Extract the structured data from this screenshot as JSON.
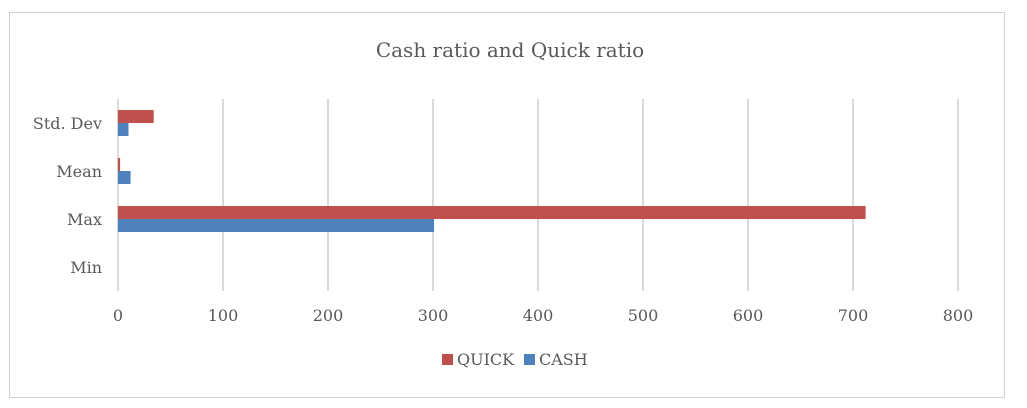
{
  "chart_data": {
    "type": "bar",
    "orientation": "horizontal",
    "title": "Cash ratio and Quick ratio",
    "categories": [
      "Min",
      "Max",
      "Mean",
      "Std. Dev"
    ],
    "series": [
      {
        "name": "QUICK",
        "color": "#c0504d",
        "values": [
          0,
          712,
          2,
          34
        ]
      },
      {
        "name": "CASH",
        "color": "#4f81bd",
        "values": [
          0,
          301,
          12,
          10
        ]
      }
    ],
    "xlim": [
      0,
      800
    ],
    "xticks": [
      "0",
      "100",
      "200",
      "300",
      "400",
      "500",
      "600",
      "700",
      "800"
    ],
    "grid": true,
    "legend_position": "bottom"
  }
}
